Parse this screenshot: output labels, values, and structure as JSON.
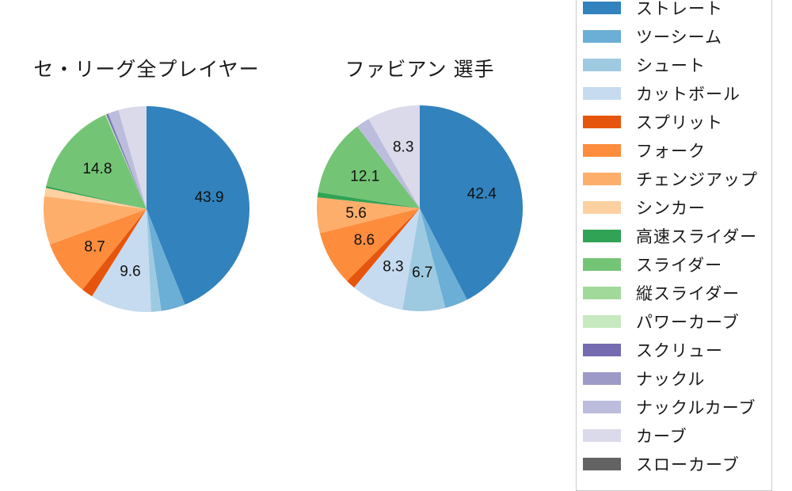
{
  "figure": {
    "background_color": "#ffffff",
    "text_color": "#1a1a1a",
    "legend_border_color": "#cccccc"
  },
  "chart_data": {
    "type": "pie",
    "start_angle": "top",
    "direction": "clockwise",
    "grid": false,
    "legend_position": "right",
    "categories": [
      "ストレート",
      "ツーシーム",
      "シュート",
      "カットボール",
      "スプリット",
      "フォーク",
      "チェンジアップ",
      "シンカー",
      "高速スライダー",
      "スライダー",
      "縦スライダー",
      "パワーカーブ",
      "スクリュー",
      "ナックル",
      "ナックルカーブ",
      "カーブ",
      "スローカーブ"
    ],
    "colors": [
      "#3182bd",
      "#6baed6",
      "#9ecae1",
      "#c6dbef",
      "#e6550d",
      "#fd8d3c",
      "#fdae6b",
      "#fdd0a2",
      "#31a354",
      "#74c476",
      "#a1d99b",
      "#c7e9c0",
      "#756bb1",
      "#9e9ac8",
      "#bcbddc",
      "#dadaeb",
      "#636363"
    ],
    "charts": [
      {
        "title": "セ・リーグ全プレイヤー",
        "values": [
          43.9,
          3.8,
          1.6,
          9.6,
          1.8,
          8.7,
          7.6,
          1.3,
          0.3,
          14.8,
          0.1,
          0.1,
          0.25,
          0.15,
          1.6,
          4.4,
          0
        ],
        "labels": [
          "43.9",
          "",
          "",
          "9.6",
          "",
          "8.7",
          "",
          "",
          "",
          "14.8",
          "",
          "",
          "",
          "",
          "",
          "",
          ""
        ]
      },
      {
        "title": "ファビアン 選手",
        "values": [
          42.4,
          3.6,
          6.7,
          8.3,
          1.5,
          8.6,
          5.6,
          0,
          0.8,
          12.1,
          0,
          0,
          0,
          0,
          2.1,
          8.3,
          0
        ],
        "labels": [
          "42.4",
          "",
          "6.7",
          "8.3",
          "",
          "8.6",
          "5.6",
          "",
          "",
          "12.1",
          "",
          "",
          "",
          "",
          "",
          "8.3",
          ""
        ]
      }
    ],
    "value_label_color": "#111111",
    "pie_radius_px": 130
  }
}
